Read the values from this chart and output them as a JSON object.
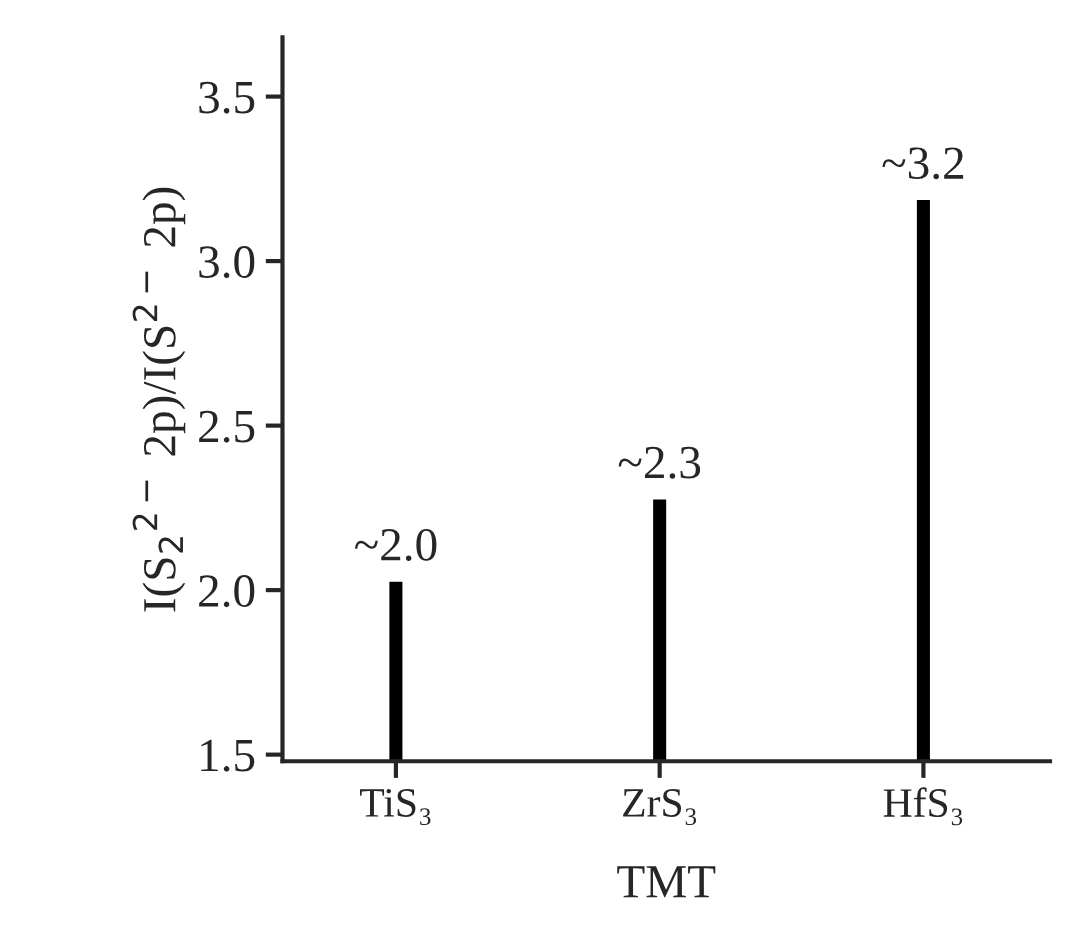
{
  "chart_data": {
    "type": "bar",
    "xlabel": "TMT",
    "ylabel": "I(S$_{2}$$^{2−}$ 2p)/I(S$^{2−}$ 2p)",
    "categories": [
      "TiS₃",
      "ZrS₃",
      "HfS₃"
    ],
    "values": [
      2.03,
      2.28,
      3.19
    ],
    "value_labels": [
      "~2.0",
      "~2.3",
      "~3.2"
    ],
    "color": "#000000",
    "ylim": [
      1.48,
      3.68
    ],
    "yticks": [
      1.5,
      {
        "value": 2,
        "label": "2.0"
      },
      2.5,
      {
        "value": 3,
        "label": "3.0"
      },
      3.5
    ],
    "grid": false
  }
}
